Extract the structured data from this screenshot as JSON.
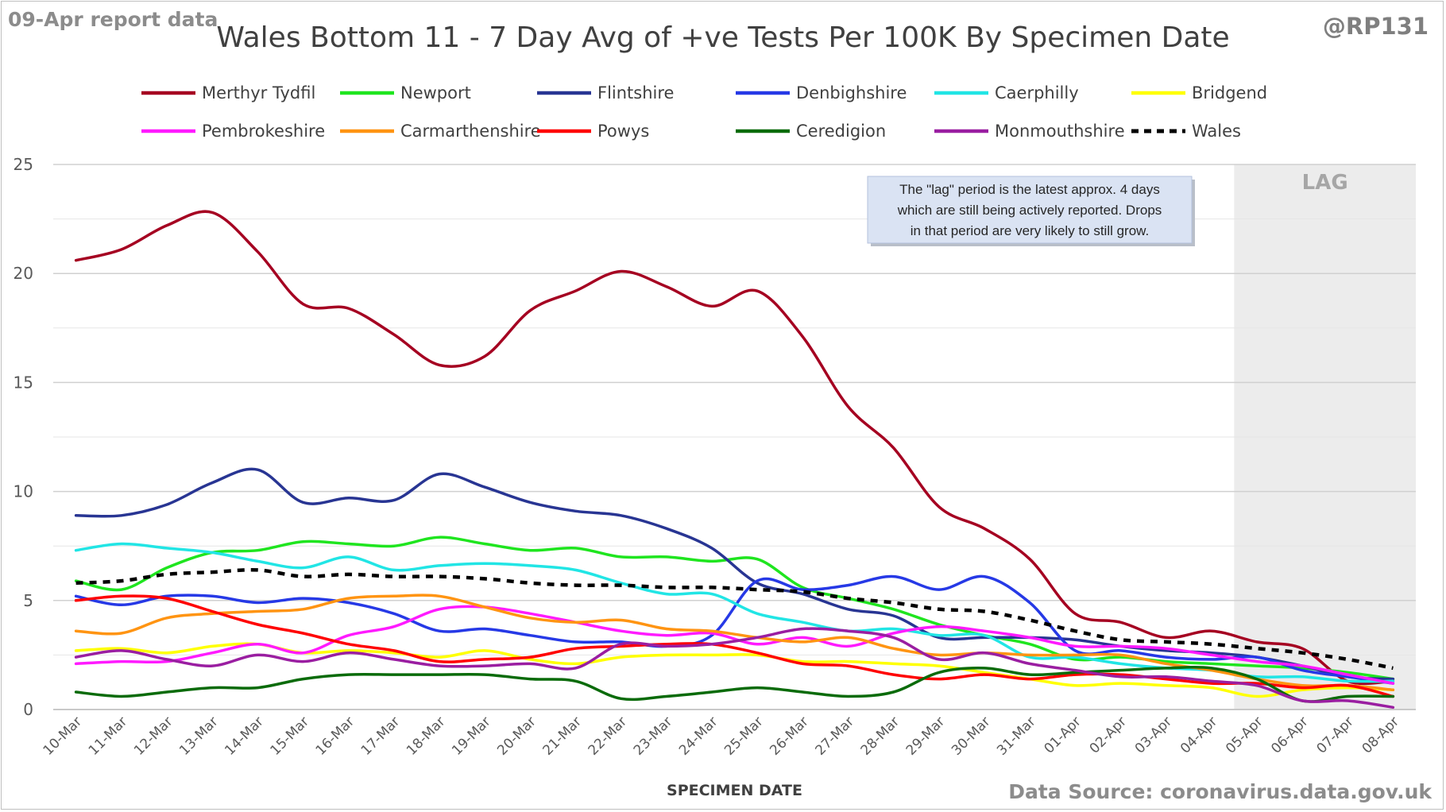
{
  "header": {
    "report_date": "09-Apr report data",
    "author": "@RP131",
    "source": "Data Source: coronavirus.data.gov.uk"
  },
  "chart_data": {
    "type": "line",
    "title": "Wales Bottom 11 - 7 Day Avg of +ve Tests Per 100K By Specimen Date",
    "xlabel": "SPECIMEN DATE",
    "ylabel": "",
    "ylim": [
      0,
      25
    ],
    "yticks": [
      0,
      5,
      10,
      15,
      20,
      25
    ],
    "grid": true,
    "legend_position": "top",
    "categories": [
      "10-Mar",
      "11-Mar",
      "12-Mar",
      "13-Mar",
      "14-Mar",
      "15-Mar",
      "16-Mar",
      "17-Mar",
      "18-Mar",
      "19-Mar",
      "20-Mar",
      "21-Mar",
      "22-Mar",
      "23-Mar",
      "24-Mar",
      "25-Mar",
      "26-Mar",
      "27-Mar",
      "28-Mar",
      "29-Mar",
      "30-Mar",
      "31-Mar",
      "01-Apr",
      "02-Apr",
      "03-Apr",
      "04-Apr",
      "05-Apr",
      "06-Apr",
      "07-Apr",
      "08-Apr"
    ],
    "lag": {
      "label": "LAG",
      "from": "05-Apr",
      "to": "08-Apr"
    },
    "annotation": "The \"lag\" period is the latest approx. 4 days which are still being actively reported.  Drops in that period are very likely to still grow.",
    "series": [
      {
        "name": "Merthyr Tydfil",
        "color": "#a50021",
        "dash": false,
        "values": [
          20.6,
          21.1,
          22.2,
          22.8,
          21.0,
          18.6,
          18.4,
          17.2,
          15.8,
          16.2,
          18.3,
          19.2,
          20.1,
          19.4,
          18.5,
          19.2,
          17.1,
          13.9,
          12.0,
          9.3,
          8.3,
          6.9,
          4.4,
          4.0,
          3.3,
          3.6,
          3.1,
          2.8,
          1.3,
          1.3
        ]
      },
      {
        "name": "Newport",
        "color": "#1fe51f",
        "dash": false,
        "values": [
          5.9,
          5.5,
          6.5,
          7.2,
          7.3,
          7.7,
          7.6,
          7.5,
          7.9,
          7.6,
          7.3,
          7.4,
          7.0,
          7.0,
          6.8,
          6.9,
          5.6,
          5.1,
          4.6,
          3.9,
          3.4,
          3.0,
          2.3,
          2.4,
          2.2,
          2.1,
          2.0,
          1.9,
          1.7,
          1.4
        ]
      },
      {
        "name": "Flintshire",
        "color": "#283593",
        "dash": false,
        "values": [
          8.9,
          8.9,
          9.4,
          10.4,
          11.0,
          9.5,
          9.7,
          9.6,
          10.8,
          10.2,
          9.5,
          9.1,
          8.9,
          8.3,
          7.4,
          5.8,
          5.3,
          4.6,
          4.3,
          3.3,
          3.3,
          3.3,
          3.2,
          2.9,
          2.7,
          2.6,
          2.4,
          2.0,
          1.5,
          1.4
        ]
      },
      {
        "name": "Denbighshire",
        "color": "#2639e6",
        "dash": false,
        "values": [
          5.2,
          4.8,
          5.2,
          5.2,
          4.9,
          5.1,
          4.9,
          4.4,
          3.6,
          3.7,
          3.4,
          3.1,
          3.1,
          2.9,
          3.4,
          5.9,
          5.5,
          5.7,
          6.1,
          5.5,
          6.1,
          4.9,
          2.7,
          2.7,
          2.4,
          2.3,
          2.4,
          1.8,
          1.5,
          1.2
        ]
      },
      {
        "name": "Caerphilly",
        "color": "#21e5e5",
        "dash": false,
        "values": [
          7.3,
          7.6,
          7.4,
          7.2,
          6.8,
          6.5,
          7.0,
          6.4,
          6.6,
          6.7,
          6.6,
          6.4,
          5.8,
          5.3,
          5.3,
          4.4,
          4.0,
          3.6,
          3.7,
          3.4,
          3.4,
          2.4,
          2.4,
          2.1,
          1.9,
          1.8,
          1.5,
          1.5,
          1.3,
          1.3
        ]
      },
      {
        "name": "Bridgend",
        "color": "#ffff00",
        "dash": false,
        "values": [
          2.7,
          2.8,
          2.6,
          2.9,
          3.0,
          2.6,
          2.7,
          2.6,
          2.4,
          2.7,
          2.3,
          2.1,
          2.4,
          2.5,
          2.5,
          2.5,
          2.2,
          2.2,
          2.1,
          2.0,
          1.7,
          1.4,
          1.1,
          1.2,
          1.1,
          1.0,
          0.6,
          0.9,
          1.0,
          0.9
        ]
      },
      {
        "name": "Pembrokeshire",
        "color": "#ff1aff",
        "dash": false,
        "values": [
          2.1,
          2.2,
          2.2,
          2.6,
          3.0,
          2.6,
          3.4,
          3.8,
          4.6,
          4.7,
          4.4,
          4.0,
          3.6,
          3.4,
          3.5,
          3.0,
          3.3,
          2.9,
          3.5,
          3.8,
          3.6,
          3.3,
          2.9,
          2.9,
          2.8,
          2.5,
          2.2,
          2.0,
          1.6,
          1.2
        ]
      },
      {
        "name": "Carmarthenshire",
        "color": "#ff9412",
        "dash": false,
        "values": [
          3.6,
          3.5,
          4.2,
          4.4,
          4.5,
          4.6,
          5.1,
          5.2,
          5.2,
          4.7,
          4.2,
          4.0,
          4.1,
          3.7,
          3.6,
          3.3,
          3.1,
          3.3,
          2.8,
          2.5,
          2.6,
          2.5,
          2.5,
          2.5,
          2.1,
          1.8,
          1.4,
          1.1,
          1.1,
          0.9
        ]
      },
      {
        "name": "Powys",
        "color": "#ff0000",
        "dash": false,
        "values": [
          5.0,
          5.2,
          5.1,
          4.5,
          3.9,
          3.5,
          3.0,
          2.7,
          2.2,
          2.3,
          2.4,
          2.8,
          2.9,
          3.0,
          3.0,
          2.6,
          2.1,
          2.0,
          1.6,
          1.4,
          1.6,
          1.4,
          1.6,
          1.6,
          1.4,
          1.2,
          1.2,
          1.0,
          1.1,
          0.6
        ]
      },
      {
        "name": "Ceredigion",
        "color": "#0a6b0a",
        "dash": false,
        "values": [
          0.8,
          0.6,
          0.8,
          1.0,
          1.0,
          1.4,
          1.6,
          1.6,
          1.6,
          1.6,
          1.4,
          1.3,
          0.5,
          0.6,
          0.8,
          1.0,
          0.8,
          0.6,
          0.8,
          1.7,
          1.9,
          1.6,
          1.7,
          1.8,
          1.9,
          1.9,
          1.4,
          0.4,
          0.6,
          0.6
        ]
      },
      {
        "name": "Monmouthshire",
        "color": "#9a1ea1",
        "dash": false,
        "values": [
          2.4,
          2.7,
          2.3,
          2.0,
          2.5,
          2.2,
          2.6,
          2.3,
          2.0,
          2.0,
          2.1,
          1.9,
          3.0,
          2.9,
          3.0,
          3.3,
          3.7,
          3.6,
          3.3,
          2.3,
          2.6,
          2.1,
          1.8,
          1.5,
          1.5,
          1.3,
          1.1,
          0.4,
          0.4,
          0.1
        ]
      },
      {
        "name": "Wales",
        "color": "#000000",
        "dash": true,
        "values": [
          5.8,
          5.9,
          6.2,
          6.3,
          6.4,
          6.1,
          6.2,
          6.1,
          6.1,
          6.0,
          5.8,
          5.7,
          5.7,
          5.6,
          5.6,
          5.5,
          5.4,
          5.1,
          4.9,
          4.6,
          4.5,
          4.1,
          3.6,
          3.2,
          3.1,
          3.0,
          2.8,
          2.6,
          2.3,
          1.9
        ]
      }
    ]
  }
}
